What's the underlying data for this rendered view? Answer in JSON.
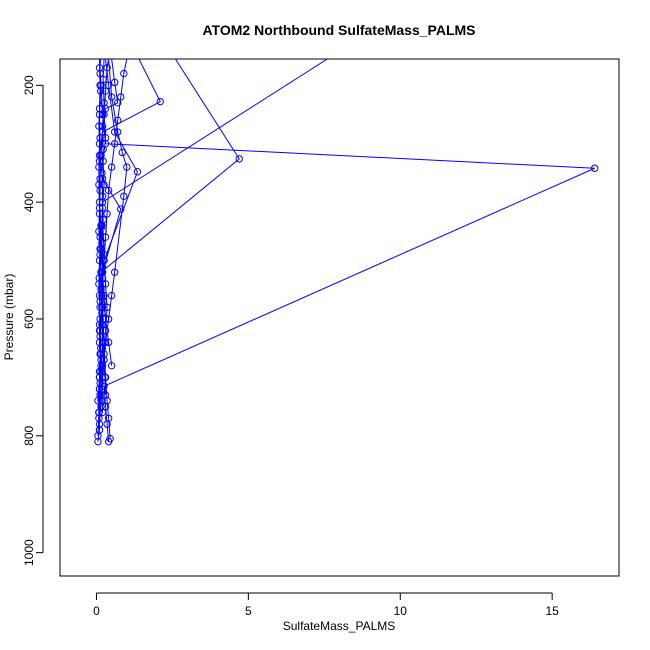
{
  "chart_data": {
    "type": "line",
    "title": "ATOM2 Northbound SulfateMass_PALMS",
    "xlabel": "SulfateMass_PALMS",
    "ylabel": "Pressure (mbar)",
    "xlim": [
      -1.2,
      17.2
    ],
    "ylim": [
      1040,
      155
    ],
    "y_reversed": true,
    "x_ticks": [
      0,
      5,
      10,
      15
    ],
    "y_ticks": [
      200,
      400,
      600,
      800,
      1000
    ],
    "grid": false,
    "legend": "none",
    "color": "#0000ff",
    "marker": "open-circle",
    "series": [
      {
        "points": [
          [
            0.05,
            810
          ],
          [
            0.1,
            790
          ],
          [
            0.08,
            760
          ],
          [
            0.12,
            730
          ],
          [
            0.1,
            700
          ],
          [
            0.15,
            660
          ],
          [
            0.12,
            620
          ],
          [
            0.18,
            580
          ],
          [
            0.2,
            540
          ],
          [
            0.25,
            500
          ],
          [
            0.3,
            460
          ],
          [
            0.35,
            420
          ],
          [
            0.4,
            380
          ],
          [
            0.5,
            340
          ],
          [
            0.6,
            300
          ],
          [
            0.7,
            260
          ],
          [
            0.8,
            220
          ],
          [
            0.9,
            180
          ],
          [
            1.0,
            155
          ]
        ]
      },
      {
        "points": [
          [
            0.4,
            810
          ],
          [
            0.35,
            780
          ],
          [
            0.3,
            750
          ],
          [
            0.25,
            715
          ],
          [
            16.4,
            342
          ],
          [
            0.3,
            300
          ],
          [
            0.2,
            250
          ],
          [
            0.15,
            200
          ],
          [
            0.1,
            155
          ]
        ]
      },
      {
        "points": [
          [
            0.45,
            805
          ],
          [
            0.4,
            770
          ],
          [
            0.35,
            740
          ],
          [
            0.3,
            700
          ],
          [
            0.25,
            640
          ],
          [
            0.2,
            580
          ],
          [
            0.15,
            520
          ],
          [
            4.7,
            326
          ],
          [
            2.6,
            155
          ]
        ]
      },
      {
        "points": [
          [
            0.1,
            790
          ],
          [
            0.08,
            760
          ],
          [
            0.1,
            720
          ],
          [
            0.15,
            680
          ],
          [
            0.1,
            640
          ],
          [
            0.12,
            600
          ],
          [
            0.1,
            560
          ],
          [
            0.15,
            520
          ],
          [
            0.12,
            480
          ],
          [
            0.15,
            440
          ],
          [
            0.1,
            400
          ],
          [
            0.12,
            360
          ],
          [
            0.15,
            320
          ],
          [
            0.2,
            280
          ],
          [
            2.1,
            228
          ],
          [
            1.4,
            155
          ]
        ]
      },
      {
        "points": [
          [
            0.5,
            680
          ],
          [
            0.4,
            640
          ],
          [
            0.3,
            600
          ],
          [
            0.25,
            560
          ],
          [
            0.2,
            520
          ],
          [
            0.8,
            412
          ],
          [
            0.2,
            360
          ],
          [
            0.1,
            320
          ],
          [
            0.2,
            280
          ],
          [
            0.3,
            240
          ],
          [
            0.7,
            230
          ],
          [
            0.6,
            195
          ],
          [
            0.5,
            155
          ]
        ]
      },
      {
        "points": [
          [
            0.05,
            800
          ],
          [
            0.08,
            760
          ],
          [
            0.1,
            720
          ],
          [
            0.2,
            680
          ],
          [
            0.3,
            640
          ],
          [
            0.4,
            600
          ],
          [
            0.5,
            560
          ],
          [
            0.6,
            520
          ],
          [
            0.9,
            390
          ],
          [
            1.0,
            340
          ],
          [
            0.85,
            315
          ],
          [
            0.7,
            280
          ],
          [
            0.5,
            220
          ],
          [
            0.4,
            155
          ]
        ]
      },
      {
        "points": [
          [
            0.1,
            780
          ],
          [
            0.15,
            740
          ],
          [
            0.2,
            700
          ],
          [
            0.25,
            660
          ],
          [
            0.3,
            620
          ],
          [
            0.35,
            580
          ],
          [
            0.3,
            540
          ],
          [
            0.25,
            500
          ],
          [
            1.35,
            348
          ],
          [
            0.6,
            280
          ],
          [
            0.4,
            200
          ],
          [
            0.3,
            155
          ]
        ]
      },
      {
        "points": [
          [
            0.05,
            740
          ],
          [
            0.1,
            700
          ],
          [
            0.12,
            660
          ],
          [
            0.1,
            620
          ],
          [
            0.12,
            580
          ],
          [
            0.08,
            540
          ],
          [
            0.1,
            500
          ],
          [
            0.12,
            460
          ],
          [
            0.1,
            420
          ],
          [
            0.12,
            380
          ],
          [
            0.08,
            340
          ],
          [
            0.1,
            300
          ],
          [
            0.08,
            270
          ],
          [
            0.1,
            240
          ],
          [
            0.12,
            200
          ],
          [
            0.1,
            170
          ],
          [
            0.15,
            155
          ]
        ]
      },
      {
        "points": [
          [
            0.2,
            760
          ],
          [
            0.18,
            720
          ],
          [
            0.15,
            690
          ],
          [
            0.2,
            650
          ],
          [
            0.18,
            610
          ],
          [
            0.22,
            570
          ],
          [
            0.2,
            530
          ],
          [
            0.25,
            490
          ],
          [
            0.22,
            450
          ],
          [
            0.2,
            410
          ],
          [
            0.25,
            370
          ],
          [
            0.22,
            330
          ],
          [
            0.3,
            290
          ],
          [
            0.25,
            250
          ],
          [
            0.3,
            210
          ],
          [
            0.35,
            170
          ],
          [
            0.4,
            155
          ]
        ]
      },
      {
        "points": [
          [
            0.3,
            730
          ],
          [
            0.28,
            700
          ],
          [
            0.25,
            670
          ],
          [
            0.2,
            640
          ],
          [
            0.22,
            600
          ],
          [
            0.18,
            560
          ],
          [
            0.2,
            520
          ],
          [
            0.15,
            480
          ],
          [
            0.18,
            440
          ],
          [
            0.2,
            400
          ],
          [
            7.6,
            155
          ]
        ]
      },
      {
        "points": [
          [
            0.08,
            770
          ],
          [
            0.12,
            730
          ],
          [
            0.1,
            690
          ],
          [
            0.14,
            650
          ],
          [
            0.1,
            610
          ],
          [
            0.12,
            570
          ],
          [
            0.09,
            530
          ],
          [
            0.12,
            490
          ],
          [
            0.08,
            450
          ],
          [
            0.1,
            410
          ],
          [
            0.08,
            370
          ],
          [
            0.1,
            330
          ],
          [
            0.12,
            290
          ],
          [
            0.1,
            250
          ],
          [
            0.14,
            210
          ],
          [
            0.12,
            180
          ],
          [
            0.1,
            155
          ]
        ]
      },
      {
        "points": [
          [
            0.15,
            750
          ],
          [
            0.12,
            710
          ],
          [
            0.15,
            670
          ],
          [
            0.12,
            630
          ],
          [
            0.18,
            590
          ],
          [
            0.15,
            550
          ],
          [
            0.2,
            510
          ],
          [
            0.18,
            470
          ],
          [
            0.22,
            430
          ],
          [
            0.2,
            390
          ],
          [
            0.18,
            350
          ],
          [
            0.22,
            310
          ],
          [
            0.2,
            270
          ],
          [
            0.25,
            230
          ],
          [
            0.22,
            190
          ],
          [
            0.25,
            155
          ]
        ]
      }
    ]
  }
}
